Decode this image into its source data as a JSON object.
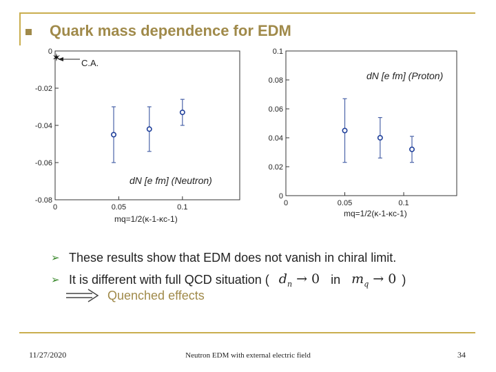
{
  "slide": {
    "title": "Quark mass dependence for EDM",
    "bullets": [
      {
        "text": "These results show that EDM does not vanish in chiral limit."
      },
      {
        "text_before": "It is different with full QCD situation (",
        "math1": "d",
        "math1_sub": "n",
        "math1_rest": "→ 0",
        "middle": "in",
        "math2": "m",
        "math2_sub": "q",
        "math2_rest": "→ 0",
        "text_after": ")"
      }
    ],
    "quenched": "Quenched effects",
    "footer": {
      "date": "11/27/2020",
      "center": "Neutron EDM with external electric field",
      "page": "34"
    }
  },
  "chart_data": [
    {
      "type": "scatter",
      "title": "dN [e fm] (Neutron)",
      "annotation": "C.A.",
      "xlabel": "mq=1/2(κ-1-κc-1)",
      "x_ticks": [
        "0",
        "0.05",
        "0.1"
      ],
      "y_ticks": [
        "0",
        "-0.02",
        "-0.04",
        "-0.06",
        "-0.08"
      ],
      "xlim": [
        0,
        0.145
      ],
      "ylim": [
        -0.08,
        0
      ],
      "points": [
        {
          "x": 0.046,
          "y": -0.045,
          "err": 0.015
        },
        {
          "x": 0.074,
          "y": -0.042,
          "err": 0.012
        },
        {
          "x": 0.1,
          "y": -0.033,
          "err": 0.007
        }
      ],
      "chiral_point": {
        "x": 0.0,
        "y": -0.003
      }
    },
    {
      "type": "scatter",
      "title": "dN [e fm] (Proton)",
      "xlabel": "mq=1/2(κ-1-κc-1)",
      "x_ticks": [
        "0",
        "0.05",
        "0.1"
      ],
      "y_ticks": [
        "0",
        "0.02",
        "0.04",
        "0.06",
        "0.08",
        "0.1"
      ],
      "xlim": [
        0,
        0.145
      ],
      "ylim": [
        0,
        0.1
      ],
      "points": [
        {
          "x": 0.05,
          "y": 0.045,
          "err": 0.022
        },
        {
          "x": 0.08,
          "y": 0.04,
          "err": 0.014
        },
        {
          "x": 0.107,
          "y": 0.032,
          "err": 0.009
        }
      ]
    }
  ]
}
